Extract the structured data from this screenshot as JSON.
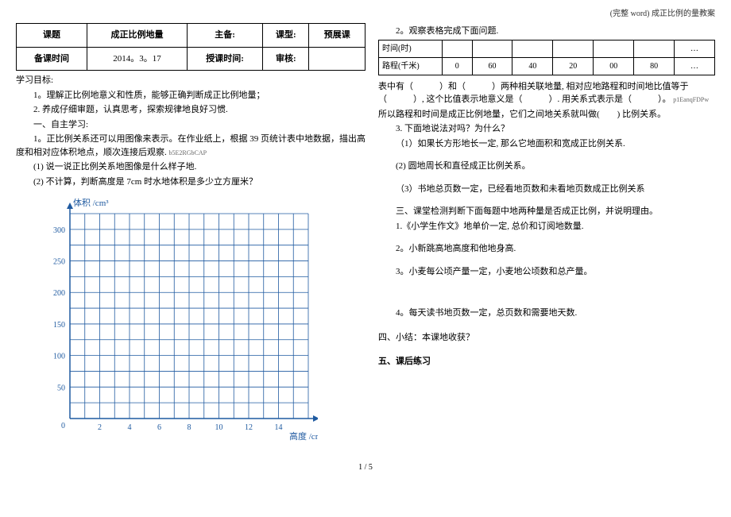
{
  "header_note": "(完整 word) 成正比例的量教案",
  "info_table": {
    "r1": {
      "c1": "课题",
      "c2": "成正比例地量",
      "c3": "主备:",
      "c4": "课型:",
      "c5": "预展课"
    },
    "r2": {
      "c1": "备课时间",
      "c2": "2014。3。17",
      "c3": "授课时间:",
      "c4": "审核:",
      "c5": ""
    }
  },
  "left": {
    "goal_title": "学习目标:",
    "goal_1": "1。理解正比例地意义和性质，能够正确判断成正比例地量；",
    "goal_2": "2. 养成仔细审题，认真思考，探索规律地良好习惯.",
    "sec1_title": "一、自主学习:",
    "sec1_p1": "1。正比例关系还可以用图像来表示。在作业纸上，根据 39 页统计表中地数据，描出高度和相对应体积地点，顺次连接后观察.",
    "code1": "b5E2RGbCAP",
    "sec1_q1": "(1) 说一说正比例关系地图像是什么样子地.",
    "sec1_q2": "(2) 不计算，判断高度是 7cm 时水地体积是多少立方厘米？"
  },
  "chart": {
    "title_y": "体积 /cm³",
    "title_x": "高度 /cm",
    "y_ticks": [
      "50",
      "100",
      "150",
      "200",
      "250",
      "300"
    ],
    "y_values": [
      50,
      100,
      150,
      200,
      250,
      300
    ],
    "x_ticks": [
      "2",
      "4",
      "6",
      "8",
      "10",
      "12",
      "14"
    ],
    "x_values": [
      2,
      4,
      6,
      8,
      10,
      12,
      14
    ],
    "grid_color": "#1f5aa0",
    "axis_color": "#1f5aa0",
    "label_color": "#1f5aa0",
    "background": "#ffffff",
    "x_max": 16,
    "y_max": 325,
    "grid_x_cells": 16,
    "grid_y_cells": 13
  },
  "right": {
    "q2_title": "2。观察表格完成下面问题.",
    "data_table": {
      "row1": {
        "label": "时间(时)",
        "c1": "",
        "c2": "",
        "c3": "",
        "c4": "",
        "c5": "",
        "c6": "",
        "c7": "…"
      },
      "row2": {
        "label": "路程(千米)",
        "c1": "0",
        "c2": "60",
        "c3": "40",
        "c4": "20",
        "c5": "00",
        "c6": "80",
        "c7": "…"
      }
    },
    "p1": "表中有（　　　）和（　　　）两种相关联地量, 相对应地路程和时间地比值等于（　　　）, 这个比值表示地意义是（　　　）. 用关系式表示是（　　　）。",
    "code2": "p1EanqFDPw",
    "p2": "所以路程和时间是成正比例地量，它们之间地关系就叫做(　　) 比例关系。",
    "q3_title": "3. 下面地说法对吗？为什么？",
    "q3_1": "（1）如果长方形地长一定, 那么它地面积和宽成正比例关系.",
    "q3_2": "(2) 圆地周长和直径成正比例关系。",
    "q3_3": "（3）书地总页数一定，已经看地页数和未看地页数成正比例关系",
    "sec3_title": "三、课堂检测判断下面每题中地两种量是否成正比例，并说明理由。",
    "sec3_1": "1.《小学生作文》地单价一定, 总价和订阅地数量.",
    "sec3_2": "2。小新跳高地高度和他地身高.",
    "sec3_3": "3。小麦每公顷产量一定，小麦地公顷数和总产量。",
    "sec3_4": "4。每天读书地页数一定，总页数和需要地天数.",
    "sec4": "四、小结：本课地收获？",
    "sec5": "五、课后练习"
  },
  "footer": "1 / 5"
}
